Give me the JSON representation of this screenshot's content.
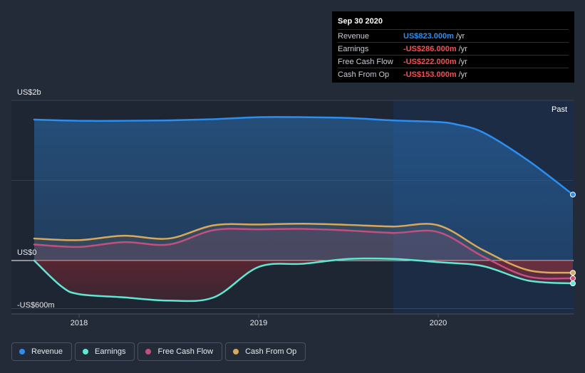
{
  "tooltip": {
    "date": "Sep 30 2020",
    "rows": [
      {
        "label": "Revenue",
        "value": "US$823.000m",
        "unit": "/yr",
        "color": "#2b8ef0"
      },
      {
        "label": "Earnings",
        "value": "-US$286.000m",
        "unit": "/yr",
        "color": "#ff4d4d"
      },
      {
        "label": "Free Cash Flow",
        "value": "-US$222.000m",
        "unit": "/yr",
        "color": "#ff4d4d"
      },
      {
        "label": "Cash From Op",
        "value": "-US$153.000m",
        "unit": "/yr",
        "color": "#ff4d4d"
      }
    ]
  },
  "past_label": "Past",
  "colors": {
    "revenue": "#2b8ef0",
    "earnings": "#5ee8d3",
    "free_cash_flow": "#c44f7f",
    "cash_from_op": "#d9a85a",
    "background": "#232b38",
    "past_region": "#1d2c45"
  },
  "chart_data": {
    "type": "line",
    "xlim": [
      2017.7,
      2020.75
    ],
    "ylim": [
      -600,
      2000
    ],
    "y_axis_labels": [
      {
        "value": 2000,
        "label": "US$2b"
      },
      {
        "value": 0,
        "label": "US$0"
      },
      {
        "value": -600,
        "label": "-US$600m"
      }
    ],
    "x_ticks": [
      {
        "value": 2018,
        "label": "2018"
      },
      {
        "value": 2019,
        "label": "2019"
      },
      {
        "value": 2020,
        "label": "2020"
      }
    ],
    "past_start": 2019.75,
    "legend": [
      "Revenue",
      "Earnings",
      "Free Cash Flow",
      "Cash From Op"
    ],
    "series": [
      {
        "name": "Revenue",
        "key": "revenue",
        "points": [
          [
            2017.75,
            1760
          ],
          [
            2018.0,
            1745
          ],
          [
            2018.25,
            1745
          ],
          [
            2018.5,
            1750
          ],
          [
            2018.75,
            1765
          ],
          [
            2019.0,
            1790
          ],
          [
            2019.25,
            1790
          ],
          [
            2019.5,
            1780
          ],
          [
            2019.75,
            1750
          ],
          [
            2020.0,
            1730
          ],
          [
            2020.1,
            1700
          ],
          [
            2020.25,
            1600
          ],
          [
            2020.5,
            1250
          ],
          [
            2020.75,
            823
          ]
        ]
      },
      {
        "name": "Earnings",
        "key": "earnings",
        "points": [
          [
            2017.75,
            0
          ],
          [
            2017.9,
            -320
          ],
          [
            2018.0,
            -420
          ],
          [
            2018.25,
            -460
          ],
          [
            2018.5,
            -500
          ],
          [
            2018.75,
            -460
          ],
          [
            2019.0,
            -80
          ],
          [
            2019.25,
            -40
          ],
          [
            2019.5,
            20
          ],
          [
            2019.75,
            20
          ],
          [
            2020.0,
            -20
          ],
          [
            2020.25,
            -70
          ],
          [
            2020.5,
            -250
          ],
          [
            2020.75,
            -286
          ]
        ]
      },
      {
        "name": "Free Cash Flow",
        "key": "free_cash_flow",
        "points": [
          [
            2017.75,
            200
          ],
          [
            2018.0,
            170
          ],
          [
            2018.25,
            230
          ],
          [
            2018.5,
            200
          ],
          [
            2018.75,
            380
          ],
          [
            2019.0,
            390
          ],
          [
            2019.25,
            395
          ],
          [
            2019.5,
            375
          ],
          [
            2019.75,
            345
          ],
          [
            2020.0,
            355
          ],
          [
            2020.25,
            50
          ],
          [
            2020.5,
            -200
          ],
          [
            2020.75,
            -222
          ]
        ]
      },
      {
        "name": "Cash From Op",
        "key": "cash_from_op",
        "points": [
          [
            2017.75,
            275
          ],
          [
            2018.0,
            255
          ],
          [
            2018.25,
            310
          ],
          [
            2018.5,
            275
          ],
          [
            2018.75,
            440
          ],
          [
            2019.0,
            450
          ],
          [
            2019.25,
            460
          ],
          [
            2019.5,
            445
          ],
          [
            2019.75,
            425
          ],
          [
            2020.0,
            440
          ],
          [
            2020.25,
            130
          ],
          [
            2020.5,
            -120
          ],
          [
            2020.75,
            -153
          ]
        ]
      }
    ]
  }
}
